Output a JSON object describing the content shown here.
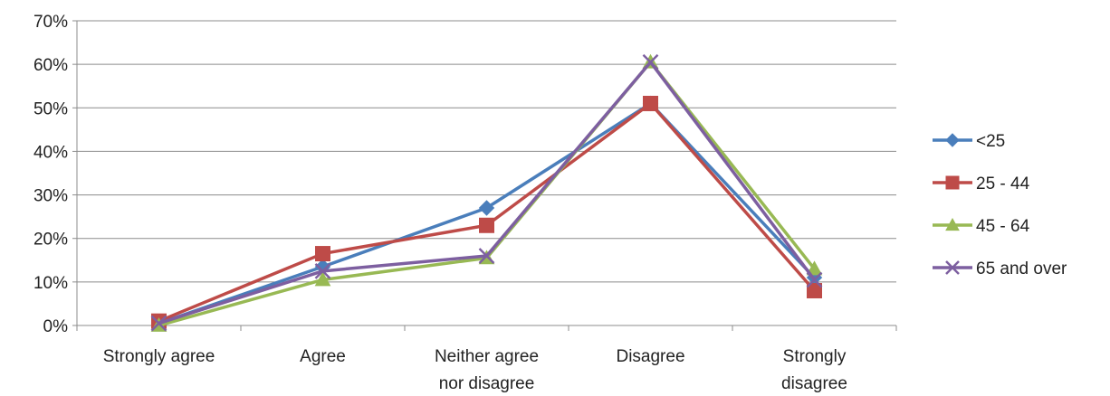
{
  "chart_data": {
    "type": "line",
    "categories": [
      [
        "Strongly agree"
      ],
      [
        "Agree"
      ],
      [
        "Neither agree",
        "nor disagree"
      ],
      [
        "Disagree"
      ],
      [
        "Strongly",
        "disagree"
      ]
    ],
    "y_ticks": [
      "0%",
      "10%",
      "20%",
      "30%",
      "40%",
      "50%",
      "60%",
      "70%"
    ],
    "ylim": [
      0,
      70
    ],
    "grid": true,
    "legend_position": "right",
    "series": [
      {
        "name": "<25",
        "color": "#4a7ebb",
        "marker": "diamond",
        "values": [
          0.5,
          13.5,
          27,
          51,
          11
        ]
      },
      {
        "name": "25 - 44",
        "color": "#be4b48",
        "marker": "square",
        "values": [
          1,
          16.5,
          23,
          51,
          8
        ]
      },
      {
        "name": "45 - 64",
        "color": "#98b954",
        "marker": "triangle",
        "values": [
          0,
          10.5,
          15.5,
          60.5,
          13
        ]
      },
      {
        "name": "65 and over",
        "color": "#7d5fa0",
        "marker": "x",
        "values": [
          0.5,
          12.5,
          16,
          60.5,
          10.5
        ]
      }
    ]
  }
}
